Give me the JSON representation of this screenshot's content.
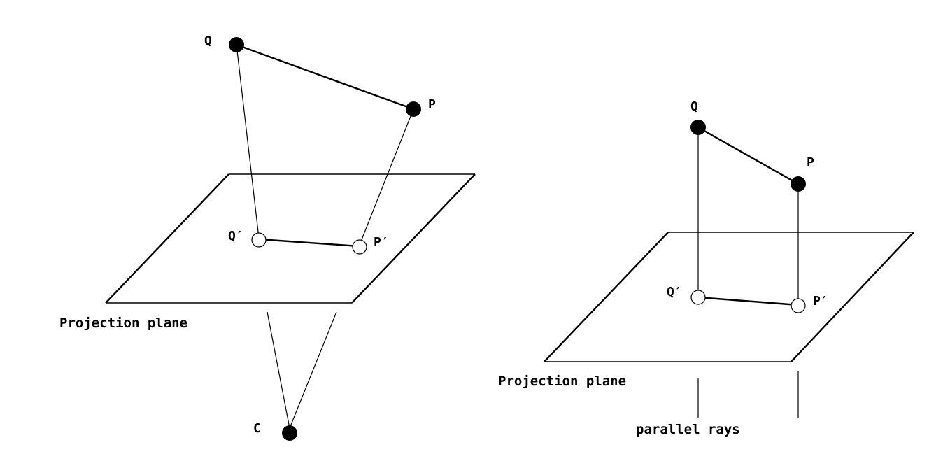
{
  "left_diagram": {
    "label_q": "Q",
    "label_p": "P",
    "label_q_prime": "Q′",
    "label_p_prime": "P′",
    "label_c": "C",
    "plane_caption": "Projection plane"
  },
  "right_diagram": {
    "label_q": "Q",
    "label_p": "P",
    "label_q_prime": "Q′",
    "label_p_prime": "P′",
    "plane_caption": "Projection plane",
    "rays_caption": "parallel rays"
  }
}
